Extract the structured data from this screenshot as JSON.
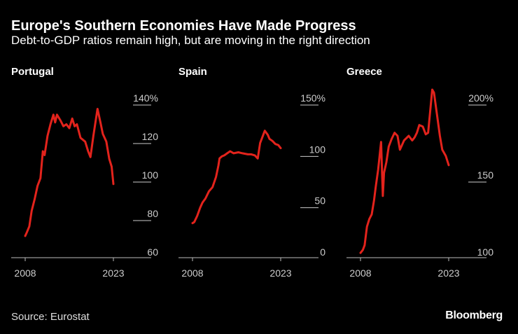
{
  "header": {
    "title": "Europe's Southern Economies Have Made Progress",
    "subtitle": "Debt-to-GDP ratios remain high, but are moving in the right direction"
  },
  "footer": {
    "source": "Source: Eurostat",
    "brand": "Bloomberg"
  },
  "colors": {
    "line": "#e3231c",
    "background": "#000000",
    "text": "#ffffff"
  },
  "chart_data": [
    {
      "type": "line",
      "title": "Portugal",
      "ylim": [
        60,
        140
      ],
      "yticks": [
        {
          "v": 60,
          "label": "60"
        },
        {
          "v": 80,
          "label": "80"
        },
        {
          "v": 100,
          "label": "100"
        },
        {
          "v": 120,
          "label": "120"
        },
        {
          "v": 140,
          "label": "140%"
        }
      ],
      "xticks": [
        {
          "v": 2008,
          "label": "2008"
        },
        {
          "v": 2023,
          "label": "2023"
        }
      ],
      "x": [
        2008,
        2008.3,
        2008.7,
        2009.1,
        2009.6,
        2010.1,
        2010.6,
        2011.0,
        2011.3,
        2011.8,
        2012.3,
        2012.8,
        2013.1,
        2013.4,
        2014.0,
        2014.5,
        2015.0,
        2015.5,
        2016.0,
        2016.4,
        2016.8,
        2017.4,
        2018.2,
        2018.7,
        2019.1,
        2019.6,
        2020.3,
        2020.8,
        2021.2,
        2021.8,
        2022.3,
        2022.7,
        2023.0
      ],
      "values": [
        72,
        74,
        77,
        85,
        91,
        98,
        102,
        116,
        114,
        124,
        130,
        135,
        131,
        135,
        132,
        129,
        130,
        128,
        133,
        129,
        130,
        123,
        121,
        116,
        113,
        124,
        138,
        131,
        125,
        121,
        112,
        108,
        99
      ]
    },
    {
      "type": "line",
      "title": "Spain",
      "ylim": [
        0,
        150
      ],
      "yticks": [
        {
          "v": 0,
          "label": "0"
        },
        {
          "v": 50,
          "label": "50"
        },
        {
          "v": 100,
          "label": "100"
        },
        {
          "v": 150,
          "label": "150%"
        }
      ],
      "xticks": [
        {
          "v": 2008,
          "label": "2008"
        },
        {
          "v": 2023,
          "label": "2023"
        }
      ],
      "x": [
        2008,
        2008.3,
        2008.8,
        2009.3,
        2009.7,
        2010.2,
        2010.8,
        2011.4,
        2012.0,
        2012.4,
        2012.6,
        2013.0,
        2013.4,
        2013.9,
        2014.4,
        2015.0,
        2015.8,
        2016.5,
        2017.4,
        2018.0,
        2018.6,
        2019.1,
        2019.5,
        2020.3,
        2020.8,
        2021.1,
        2021.6,
        2022.1,
        2022.6,
        2023.0
      ],
      "values": [
        35,
        36,
        42,
        50,
        55,
        59,
        66,
        70,
        80,
        91,
        98,
        100,
        101,
        103,
        105,
        103,
        104,
        103,
        102,
        102,
        101,
        98,
        113,
        125,
        121,
        117,
        115,
        112,
        111,
        108
      ]
    },
    {
      "type": "line",
      "title": "Greece",
      "ylim": [
        100,
        200
      ],
      "yticks": [
        {
          "v": 100,
          "label": "100"
        },
        {
          "v": 150,
          "label": "150"
        },
        {
          "v": 200,
          "label": "200%"
        }
      ],
      "xticks": [
        {
          "v": 2008,
          "label": "2008"
        },
        {
          "v": 2023,
          "label": "2023"
        }
      ],
      "x": [
        2008,
        2008.4,
        2008.7,
        2009.1,
        2009.5,
        2009.9,
        2010.3,
        2010.6,
        2011.0,
        2011.5,
        2011.8,
        2012.0,
        2012.4,
        2012.8,
        2013.3,
        2013.8,
        2014.3,
        2014.7,
        2015.4,
        2016.2,
        2016.8,
        2017.2,
        2017.6,
        2018.0,
        2018.6,
        2019.1,
        2019.5,
        2020.2,
        2020.5,
        2021.0,
        2021.5,
        2021.9,
        2022.5,
        2023.0
      ],
      "values": [
        104,
        106,
        109,
        121,
        126,
        129,
        138,
        147,
        158,
        176,
        141,
        156,
        163,
        173,
        178,
        182,
        180,
        171,
        177,
        180,
        177,
        179,
        182,
        187,
        186,
        181,
        182,
        210,
        208,
        194,
        180,
        171,
        167,
        161
      ]
    }
  ]
}
